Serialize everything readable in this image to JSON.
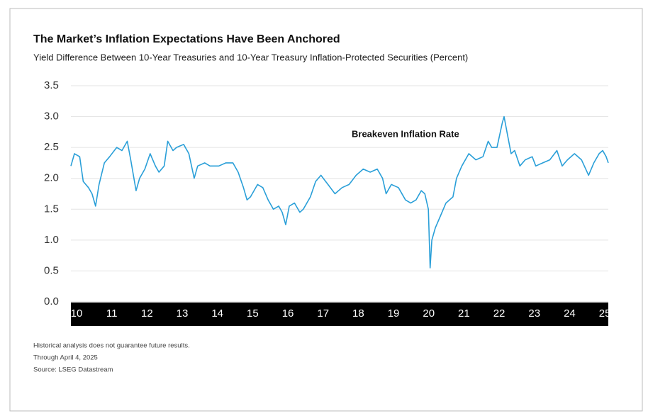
{
  "chart_data": {
    "type": "line",
    "title": "The Market’s Inflation Expectations Have Been Anchored",
    "subtitle": "Yield Difference Between 10-Year Treasuries and 10-Year Treasury Inflation-Protected Securities (Percent)",
    "annotations": [
      "Breakeven Inflation Rate"
    ],
    "notes": [
      "Historical analysis does not guarantee future results.",
      "Through April 4, 2025",
      "Source: LSEG Datastream"
    ],
    "series": [
      {
        "name": "Breakeven Inflation Rate",
        "color": "#2a9fd8",
        "x": [
          2010.0,
          2010.1,
          2010.25,
          2010.35,
          2010.5,
          2010.6,
          2010.7,
          2010.8,
          2010.95,
          2011.1,
          2011.3,
          2011.45,
          2011.6,
          2011.7,
          2011.85,
          2011.95,
          2012.1,
          2012.25,
          2012.4,
          2012.5,
          2012.65,
          2012.75,
          2012.9,
          2013.0,
          2013.2,
          2013.35,
          2013.5,
          2013.6,
          2013.8,
          2013.95,
          2014.2,
          2014.4,
          2014.6,
          2014.75,
          2014.9,
          2015.0,
          2015.1,
          2015.3,
          2015.45,
          2015.6,
          2015.75,
          2015.9,
          2016.0,
          2016.1,
          2016.2,
          2016.35,
          2016.5,
          2016.6,
          2016.8,
          2016.95,
          2017.1,
          2017.3,
          2017.5,
          2017.7,
          2017.9,
          2018.1,
          2018.3,
          2018.5,
          2018.7,
          2018.85,
          2018.95,
          2019.1,
          2019.3,
          2019.5,
          2019.65,
          2019.8,
          2019.95,
          2020.05,
          2020.15,
          2020.2,
          2020.25,
          2020.35,
          2020.5,
          2020.65,
          2020.85,
          2020.95,
          2021.1,
          2021.3,
          2021.5,
          2021.7,
          2021.85,
          2021.95,
          2022.1,
          2022.25,
          2022.3,
          2022.4,
          2022.5,
          2022.6,
          2022.75,
          2022.9,
          2023.1,
          2023.2,
          2023.4,
          2023.6,
          2023.8,
          2023.95,
          2024.1,
          2024.3,
          2024.5,
          2024.7,
          2024.85,
          2025.0,
          2025.1,
          2025.2,
          2025.26
        ],
        "values": [
          2.2,
          2.4,
          2.35,
          1.95,
          1.85,
          1.75,
          1.55,
          1.9,
          2.25,
          2.35,
          2.5,
          2.45,
          2.6,
          2.3,
          1.8,
          2.0,
          2.15,
          2.4,
          2.2,
          2.1,
          2.2,
          2.6,
          2.45,
          2.5,
          2.55,
          2.4,
          2.0,
          2.2,
          2.25,
          2.2,
          2.2,
          2.25,
          2.25,
          2.1,
          1.85,
          1.65,
          1.7,
          1.9,
          1.85,
          1.65,
          1.5,
          1.55,
          1.45,
          1.25,
          1.55,
          1.6,
          1.45,
          1.5,
          1.7,
          1.95,
          2.05,
          1.9,
          1.75,
          1.85,
          1.9,
          2.05,
          2.15,
          2.1,
          2.15,
          2.0,
          1.75,
          1.9,
          1.85,
          1.65,
          1.6,
          1.65,
          1.8,
          1.75,
          1.5,
          0.55,
          1.0,
          1.2,
          1.4,
          1.6,
          1.7,
          2.0,
          2.2,
          2.4,
          2.3,
          2.35,
          2.6,
          2.5,
          2.5,
          2.9,
          3.0,
          2.7,
          2.4,
          2.45,
          2.2,
          2.3,
          2.35,
          2.2,
          2.25,
          2.3,
          2.45,
          2.2,
          2.3,
          2.4,
          2.3,
          2.05,
          2.25,
          2.4,
          2.45,
          2.35,
          2.25
        ]
      }
    ],
    "xlim": [
      2010,
      2025.26
    ],
    "xticks": [
      {
        "value": 2010,
        "label": "10"
      },
      {
        "value": 2011,
        "label": "11"
      },
      {
        "value": 2012,
        "label": "12"
      },
      {
        "value": 2013,
        "label": "13"
      },
      {
        "value": 2014,
        "label": "14"
      },
      {
        "value": 2015,
        "label": "15"
      },
      {
        "value": 2016,
        "label": "16"
      },
      {
        "value": 2017,
        "label": "17"
      },
      {
        "value": 2018,
        "label": "18"
      },
      {
        "value": 2019,
        "label": "19"
      },
      {
        "value": 2020,
        "label": "20"
      },
      {
        "value": 2021,
        "label": "21"
      },
      {
        "value": 2022,
        "label": "22"
      },
      {
        "value": 2023,
        "label": "23"
      },
      {
        "value": 2024,
        "label": "24"
      },
      {
        "value": 2025,
        "label": "25"
      }
    ],
    "ylim": [
      0,
      3.5
    ],
    "yticks": [
      {
        "value": 0,
        "label": "0.0"
      },
      0.5,
      {
        "value": 1,
        "label": "1.0"
      },
      1.5,
      {
        "value": 2,
        "label": "2.0"
      },
      2.5,
      {
        "value": 3,
        "label": "3.0"
      },
      3.5
    ],
    "grid": true
  }
}
